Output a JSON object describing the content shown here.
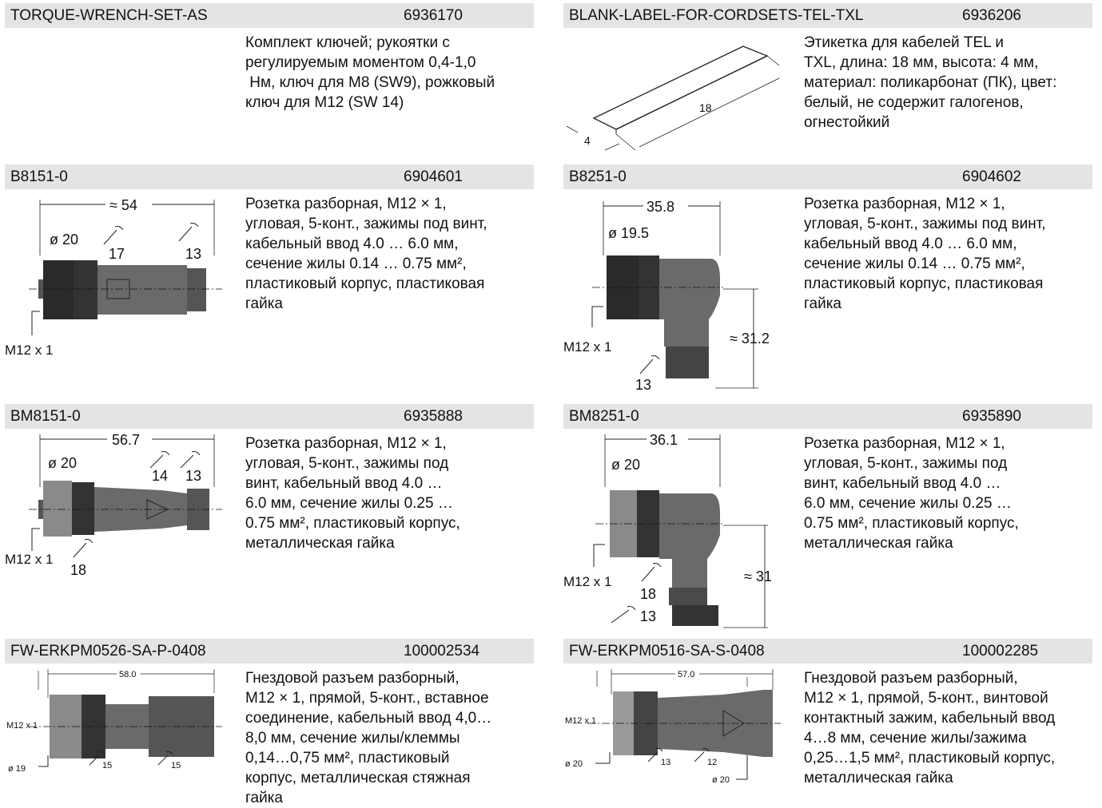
{
  "products": [
    {
      "name": "TORQUE-WRENCH-SET-AS",
      "code": "6936170",
      "description": "Комплект ключей; рукоятки с\nрегулируемым моментом 0,4-1,0\n Нм, ключ для M8 (SW9), рожковый\nключ для M12 (SW 14)",
      "drawing": {}
    },
    {
      "name": "BLANK-LABEL-FOR-CORDSETS-TEL-TXL",
      "code": "6936206",
      "description": "Этикетка для кабелей TEL и\nTXL, длина: 18 мм, высота: 4 мм,\nматериал: поликарбонат (ПК), цвет:\nбелый, не содержит галогенов,\nогнестойкий",
      "drawing": {
        "len": "18",
        "height": "4"
      }
    },
    {
      "name": "B8151-0",
      "code": "6904601",
      "description": "Розетка разборная, M12 × 1,\nугловая, 5-конт., зажимы под винт,\nкабельный ввод 4.0 … 6.0 мм,\nсечение жилы 0.14 … 0.75 мм²,\nпластиковый корпус, пластиковая\nгайка",
      "drawing": {
        "length": "≈ 54",
        "dia": "ø 20",
        "wrench1": "17",
        "wrench2": "13",
        "thread": "M12 x 1"
      }
    },
    {
      "name": "B8251-0",
      "code": "6904602",
      "description": "Розетка разборная, M12 × 1,\nугловая, 5-конт., зажимы под винт,\nкабельный ввод 4.0 … 6.0 мм,\nсечение жилы 0.14 … 0.75 мм²,\nпластиковый корпус, пластиковая\nгайка",
      "drawing": {
        "length": "35.8",
        "dia": "ø 19.5",
        "height": "≈ 31.2",
        "thread": "M12 x 1",
        "wrench": "13"
      }
    },
    {
      "name": "BM8151-0",
      "code": "6935888",
      "description": "Розетка разборная, M12 × 1,\nугловая, 5-конт., зажимы под\nвинт, кабельный ввод 4.0 …\n6.0 мм, сечение жилы 0.25 …\n0.75 мм², пластиковый корпус,\nметаллическая гайка",
      "drawing": {
        "length": "56.7",
        "dia": "ø 20",
        "wrench1": "14",
        "wrench2": "13",
        "wrench3": "18",
        "thread": "M12 x 1"
      }
    },
    {
      "name": "BM8251-0",
      "code": "6935890",
      "description": "Розетка разборная, M12 × 1,\nугловая, 5-конт., зажимы под\nвинт, кабельный ввод 4.0 …\n6.0 мм, сечение жилы 0.25 …\n0.75 мм², пластиковый корпус,\nметаллическая гайка",
      "drawing": {
        "length": "36.1",
        "dia": "ø 20",
        "height": "≈ 31",
        "thread": "M12 x 1",
        "wrench1": "18",
        "wrench2": "13"
      }
    },
    {
      "name": "FW-ERKPM0526-SA-P-0408",
      "code": "100002534",
      "description": "Гнездовой разъем разборный,\nM12 × 1, прямой, 5-конт., вставное\nсоединение, кабельный ввод 4,0…\n8,0 мм, сечение жилы/клеммы\n0,14…0,75 мм², пластиковый\nкорпус, металлическая стяжная\nгайка",
      "drawing": {
        "length": "58.0",
        "thread": "M12 x 1",
        "dia": "ø 19",
        "wrench1": "15",
        "wrench2": "15"
      }
    },
    {
      "name": "FW-ERKPM0516-SA-S-0408",
      "code": "100002285",
      "description": "Гнездовой разъем разборный,\nM12 × 1, прямой, 5-конт., винтовой\nконтактный зажим, кабельный ввод\n4…8 мм, сечение жилы/зажима\n0,25…1,5 мм², пластиковый корпус,\nметаллическая гайка",
      "drawing": {
        "length": "57.0",
        "thread": "M12 x 1",
        "dia1": "ø 20",
        "dia2": "ø 20",
        "wrench1": "13",
        "wrench2": "12"
      }
    }
  ]
}
